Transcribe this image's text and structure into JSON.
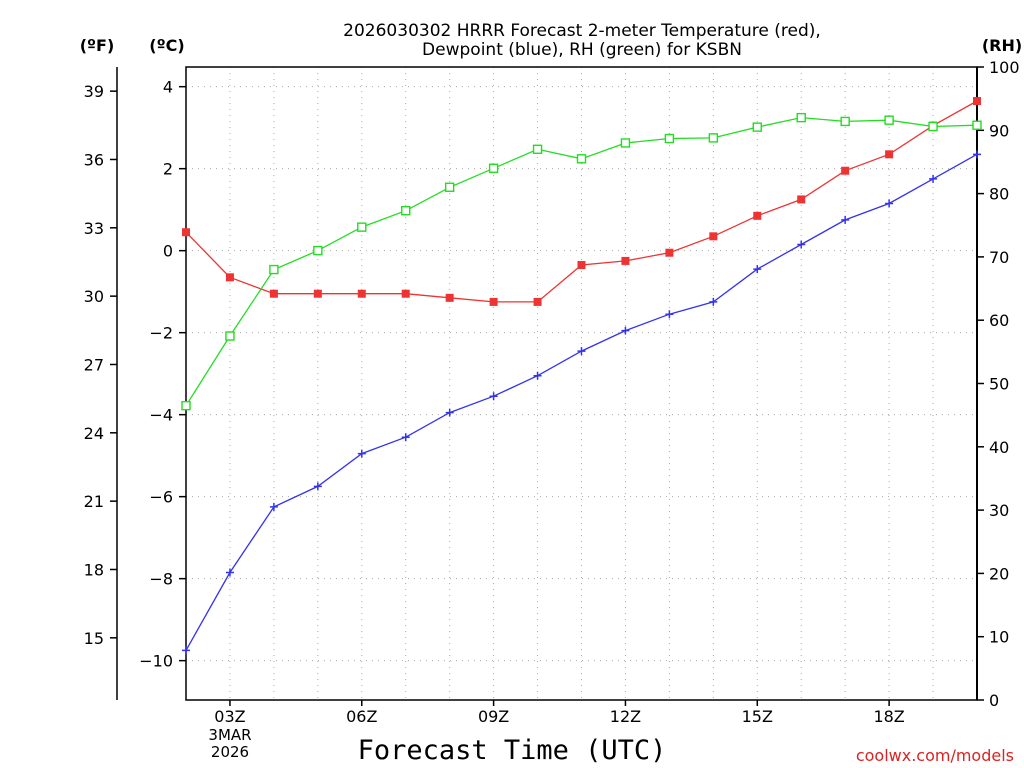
{
  "chart_data": {
    "type": "line",
    "title_line1": "2026030302 HRRR Forecast 2-meter Temperature (red),",
    "title_line2": "Dewpoint (blue), RH (green) for KSBN",
    "xlabel": "Forecast Time (UTC)",
    "watermark": "coolwx.com/models",
    "unit_f": "(ºF)",
    "unit_c": "(ºC)",
    "unit_rh": "(RH)",
    "x": [
      2,
      3,
      4,
      5,
      6,
      7,
      8,
      9,
      10,
      11,
      12,
      13,
      14,
      15,
      16,
      17,
      18,
      19,
      20
    ],
    "xlim": [
      2,
      20
    ],
    "x_ticks": [
      {
        "x": 3,
        "label": "03Z"
      },
      {
        "x": 6,
        "label": "06Z"
      },
      {
        "x": 9,
        "label": "09Z"
      },
      {
        "x": 12,
        "label": "12Z"
      },
      {
        "x": 15,
        "label": "15Z"
      },
      {
        "x": 18,
        "label": "18Z"
      }
    ],
    "date_label": [
      "3MAR",
      "2026"
    ],
    "ylim_c": [
      -10.96,
      4.48
    ],
    "ylim_f": [
      12.27,
      40.06
    ],
    "ylim_rh": [
      0,
      100
    ],
    "yticks_c": [
      4,
      2,
      0,
      -2,
      -4,
      -6,
      -8,
      -10
    ],
    "yticks_f": [
      39,
      36,
      33,
      30,
      27,
      24,
      21,
      18,
      15
    ],
    "yticks_rh": [
      0,
      10,
      20,
      30,
      40,
      50,
      60,
      70,
      80,
      90,
      100
    ],
    "yticklabels_c": [
      "4",
      "2",
      "0",
      "−2",
      "−4",
      "−6",
      "−8",
      "−10"
    ],
    "grid": true,
    "series": [
      {
        "name": "Temperature",
        "color": "#ee3333",
        "axis": "c",
        "marker": "filled-square",
        "values": [
          0.45,
          -0.65,
          -1.05,
          -1.05,
          -1.05,
          -1.05,
          -1.15,
          -1.25,
          -1.25,
          -0.35,
          -0.25,
          -0.05,
          0.35,
          0.85,
          1.25,
          1.95,
          2.35,
          3.05,
          3.65
        ]
      },
      {
        "name": "Dewpoint",
        "color": "#3333ee",
        "axis": "c",
        "marker": "plus",
        "values": [
          -9.75,
          -7.85,
          -6.25,
          -5.75,
          -4.95,
          -4.55,
          -3.95,
          -3.55,
          -3.05,
          -2.45,
          -1.95,
          -1.55,
          -1.25,
          -0.45,
          0.15,
          0.75,
          1.15,
          1.75,
          2.35
        ]
      },
      {
        "name": "RH",
        "color": "#22dd22",
        "axis": "rh",
        "marker": "open-square",
        "values": [
          46.5,
          57.5,
          68.0,
          71.0,
          74.7,
          77.3,
          81.0,
          84.0,
          87.0,
          85.5,
          88.0,
          88.7,
          88.8,
          90.5,
          92.0,
          91.4,
          91.6,
          90.6,
          90.8
        ]
      }
    ]
  }
}
